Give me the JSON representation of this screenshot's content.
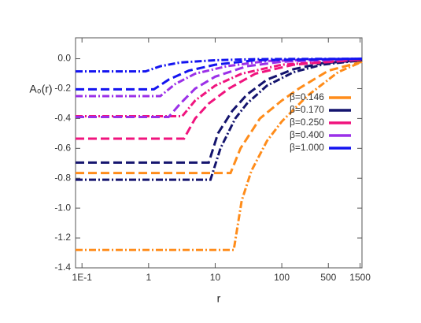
{
  "chart_data": {
    "type": "line",
    "x_label": "r",
    "y_label": "A₀(r)",
    "log_x": true,
    "xlim": [
      0.08,
      1600
    ],
    "ylim": [
      -1.4,
      0.14
    ],
    "xticks": [
      {
        "value": 0.1,
        "label": "1E-1"
      },
      1,
      10,
      100,
      500,
      1500
    ],
    "yticks": [
      {
        "value": 0,
        "label": "0.0"
      },
      -0.2,
      -0.4,
      -0.6,
      -0.8,
      {
        "value": -1,
        "label": "-1.0"
      },
      -1.2,
      -1.4
    ],
    "legend": "upper-right",
    "series": [
      {
        "name": "β=0.146",
        "color": "#ff8c1a",
        "curves": [
          {
            "style": "dashdot",
            "x": [
              0.08,
              19,
              25,
              35,
              60,
              100,
              240,
              700,
              1600
            ],
            "values": [
              -1.28,
              -1.28,
              -0.95,
              -0.75,
              -0.55,
              -0.42,
              -0.25,
              -0.09,
              -0.02
            ]
          },
          {
            "style": "dashed",
            "x": [
              0.08,
              17,
              24,
              47,
              100,
              180,
              500,
              1600
            ],
            "values": [
              -0.765,
              -0.765,
              -0.6,
              -0.4,
              -0.28,
              -0.2,
              -0.08,
              -0.02
            ]
          }
        ]
      },
      {
        "name": "β=0.170",
        "color": "#14146e",
        "curves": [
          {
            "style": "dashdot",
            "x": [
              0.08,
              8.5,
              12,
              20,
              30,
              60,
              150,
              400,
              1600
            ],
            "values": [
              -0.81,
              -0.81,
              -0.6,
              -0.4,
              -0.3,
              -0.18,
              -0.09,
              -0.04,
              -0.01
            ]
          },
          {
            "style": "dashed",
            "x": [
              0.08,
              8,
              11,
              18,
              30,
              60,
              150,
              400,
              1600
            ],
            "values": [
              -0.695,
              -0.695,
              -0.5,
              -0.35,
              -0.24,
              -0.14,
              -0.07,
              -0.03,
              -0.01
            ]
          }
        ]
      },
      {
        "name": "β=0.250",
        "color": "#f0147e",
        "curves": [
          {
            "style": "dashed",
            "x": [
              0.08,
              3.4,
              5,
              8,
              16,
              40,
              150,
              1600
            ],
            "values": [
              -0.535,
              -0.535,
              -0.4,
              -0.3,
              -0.2,
              -0.1,
              -0.04,
              -0.005
            ]
          },
          {
            "style": "dashdot",
            "x": [
              0.08,
              3.2,
              5,
              10,
              25,
              100,
              1600
            ],
            "values": [
              -0.385,
              -0.385,
              -0.28,
              -0.18,
              -0.1,
              -0.04,
              -0.005
            ]
          }
        ]
      },
      {
        "name": "β=0.400",
        "color": "#9b30e8",
        "curves": [
          {
            "style": "dashed",
            "x": [
              0.08,
              2,
              3,
              5,
              10,
              30,
              100,
              1600
            ],
            "values": [
              -0.39,
              -0.39,
              -0.3,
              -0.2,
              -0.12,
              -0.05,
              -0.02,
              0
            ]
          },
          {
            "style": "dashdot",
            "x": [
              0.08,
              1.5,
              2.5,
              5,
              15,
              60,
              1600
            ],
            "values": [
              -0.25,
              -0.25,
              -0.17,
              -0.1,
              -0.05,
              -0.015,
              0
            ]
          }
        ]
      },
      {
        "name": "β=1.000",
        "color": "#1414f0",
        "curves": [
          {
            "style": "dashed",
            "x": [
              0.08,
              1.2,
              2,
              4,
              10,
              40,
              1600
            ],
            "values": [
              -0.205,
              -0.205,
              -0.14,
              -0.08,
              -0.04,
              -0.01,
              0
            ]
          },
          {
            "style": "dashdot",
            "x": [
              0.08,
              0.9,
              1.5,
              3,
              10,
              40,
              1600
            ],
            "values": [
              -0.085,
              -0.085,
              -0.05,
              -0.025,
              -0.01,
              -0.003,
              0
            ]
          }
        ]
      }
    ]
  }
}
